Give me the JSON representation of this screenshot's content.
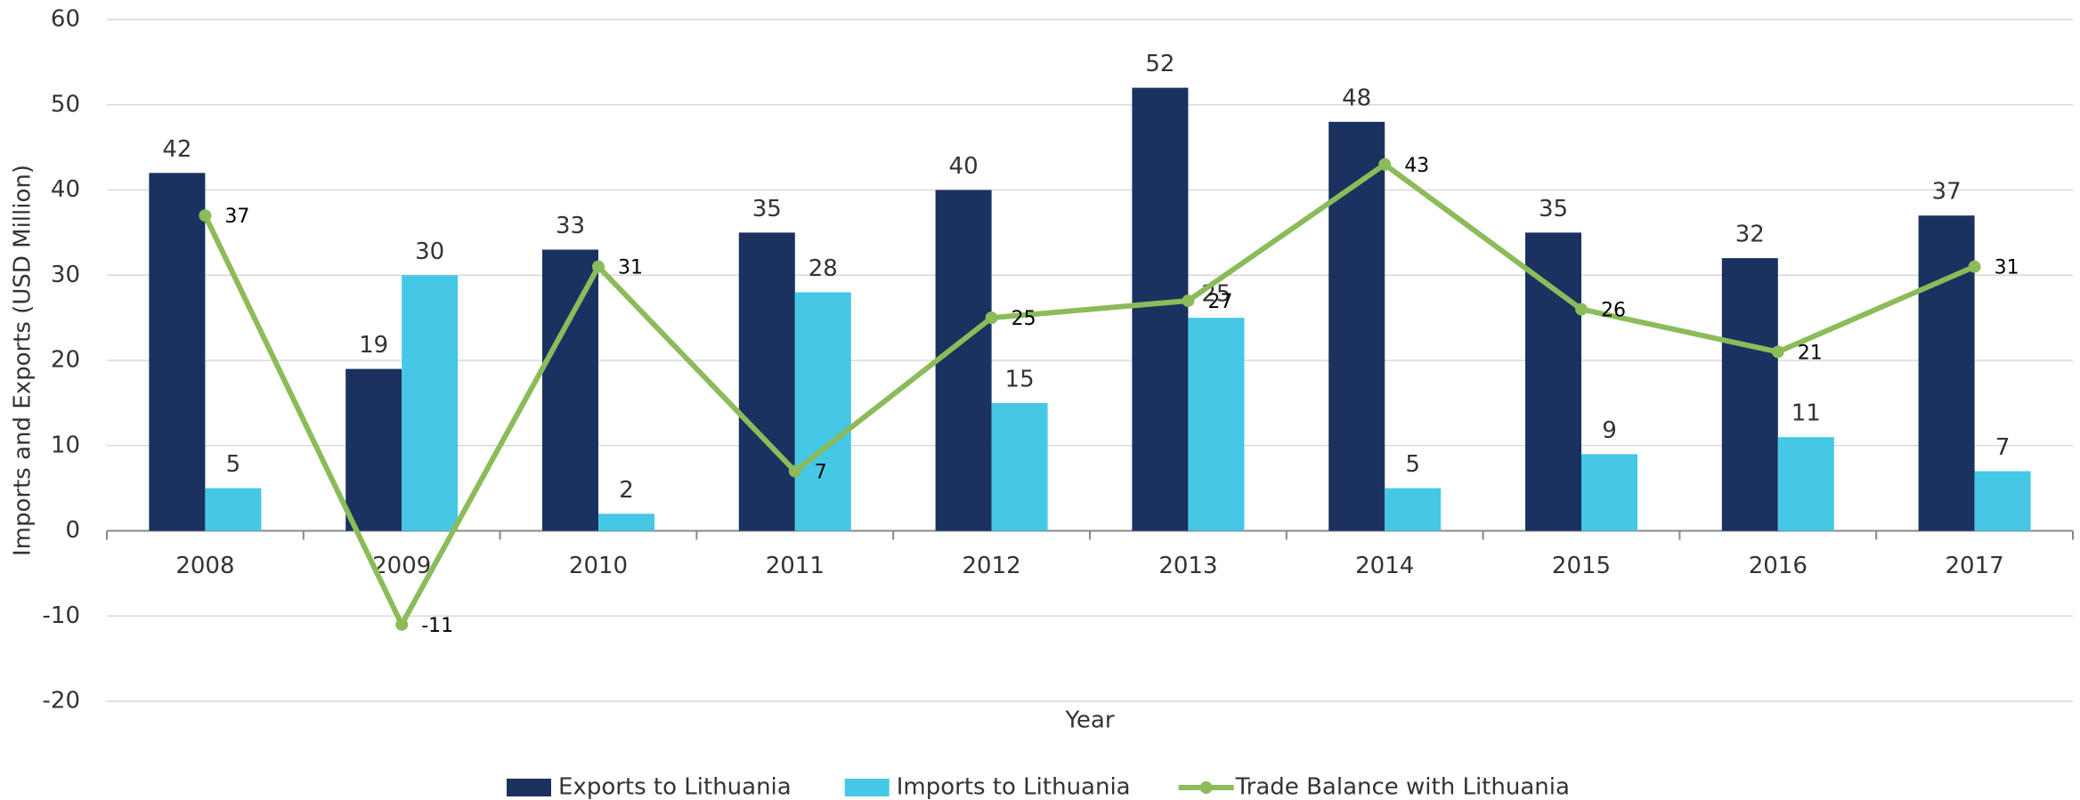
{
  "chart_data": {
    "type": "bar_line",
    "x_label": "Year",
    "y_label": "Imports and Exports (USD Million)",
    "categories": [
      "2008",
      "2009",
      "2010",
      "2011",
      "2012",
      "2013",
      "2014",
      "2015",
      "2016",
      "2017"
    ],
    "series": [
      {
        "name": "Exports to Lithuania",
        "type": "bar",
        "color": "#1b3160",
        "values": [
          42,
          19,
          33,
          35,
          40,
          52,
          48,
          35,
          32,
          37
        ]
      },
      {
        "name": "Imports to Lithuania",
        "type": "bar",
        "color": "#45c8e6",
        "values": [
          5,
          30,
          2,
          28,
          15,
          25,
          5,
          9,
          11,
          7
        ]
      },
      {
        "name": "Trade Balance with Lithuania",
        "type": "line",
        "color": "#8cbb59",
        "values": [
          37,
          -11,
          31,
          7,
          25,
          27,
          43,
          26,
          21,
          31
        ]
      }
    ],
    "ylim": [
      -20,
      60
    ],
    "yticks": [
      -20,
      -10,
      0,
      10,
      20,
      30,
      40,
      50,
      60
    ],
    "grid": true,
    "legend": "bottom"
  }
}
